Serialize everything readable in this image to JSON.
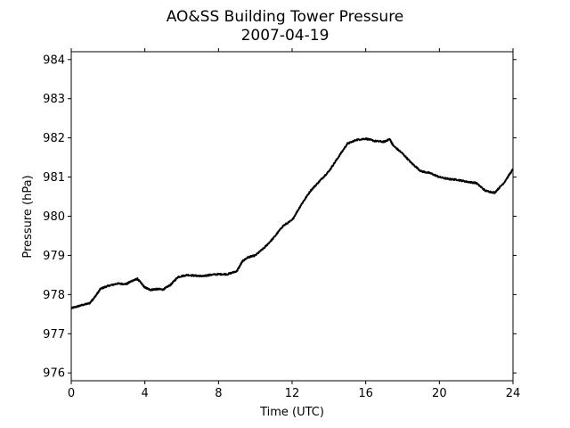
{
  "chart_data": {
    "type": "line",
    "title": "AO&SS Building Tower Pressure",
    "subtitle": "2007-04-19",
    "xlabel": "Time (UTC)",
    "ylabel": "Pressure (hPa)",
    "xlim": [
      0,
      24
    ],
    "ylim": [
      975.8,
      984.2
    ],
    "xticks": [
      0,
      4,
      8,
      12,
      16,
      20,
      24
    ],
    "yticks": [
      976,
      977,
      978,
      979,
      980,
      981,
      982,
      983,
      984
    ],
    "grid": false,
    "line_color": "#000000",
    "series": [
      {
        "x": [
          0,
          0.5,
          1.0,
          1.3,
          1.6,
          2.0,
          2.5,
          3.0,
          3.3,
          3.6,
          4.0,
          4.3,
          4.6,
          5.0,
          5.4,
          5.8,
          6.3,
          6.8,
          7.2,
          7.5,
          8.0,
          8.5,
          9.0,
          9.3,
          9.6,
          10.0,
          10.5,
          11.0,
          11.5,
          12.0,
          12.5,
          13.0,
          13.5,
          14.0,
          14.5,
          15.0,
          15.5,
          16.0,
          16.5,
          17.0,
          17.3,
          17.5,
          18.0,
          18.5,
          19.0,
          19.5,
          20.0,
          20.5,
          21.0,
          21.5,
          22.0,
          22.5,
          23.0,
          23.5,
          24.0
        ],
        "y": [
          977.65,
          977.72,
          977.78,
          977.95,
          978.15,
          978.22,
          978.28,
          978.27,
          978.35,
          978.4,
          978.18,
          978.12,
          978.14,
          978.13,
          978.25,
          978.45,
          978.5,
          978.48,
          978.47,
          978.5,
          978.52,
          978.52,
          978.6,
          978.85,
          978.95,
          979.0,
          979.2,
          979.45,
          979.75,
          979.9,
          980.3,
          980.65,
          980.9,
          981.15,
          981.5,
          981.85,
          981.95,
          981.98,
          981.92,
          981.9,
          981.97,
          981.8,
          981.6,
          981.35,
          981.15,
          981.1,
          981.0,
          980.95,
          980.93,
          980.88,
          980.85,
          980.65,
          980.6,
          980.85,
          981.2
        ]
      }
    ]
  }
}
